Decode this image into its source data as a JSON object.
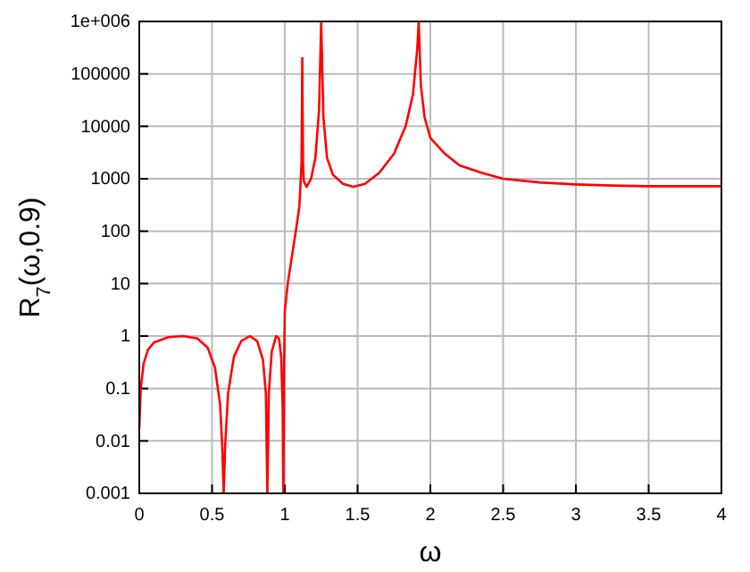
{
  "chart_data": {
    "type": "line",
    "xlabel": "ω",
    "ylabel": "R$_{7}$(ω,0.9)",
    "log": "y",
    "grid": true,
    "marker": "none",
    "line_style": "solid",
    "xlim": [
      0,
      4
    ],
    "xticks": [
      0,
      0.5,
      1,
      1.5,
      2,
      2.5,
      3,
      3.5,
      4
    ],
    "ylim": [
      0.001,
      1000000
    ],
    "yticks": [
      0.001,
      0.01,
      0.1,
      1,
      10,
      100,
      1000,
      10000,
      100000,
      {
        "value": 1000000,
        "label": "1e+006"
      }
    ],
    "series": [
      {
        "color": "#ff0000",
        "x": [
          0,
          0.01,
          0.03,
          0.06,
          0.1,
          0.2,
          0.3,
          0.4,
          0.47,
          0.52,
          0.555,
          0.57,
          0.58,
          0.59,
          0.61,
          0.65,
          0.7,
          0.76,
          0.81,
          0.85,
          0.87,
          0.88,
          0.89,
          0.91,
          0.94,
          0.96,
          0.975,
          0.985,
          0.99,
          0.995,
          1.0,
          1.02,
          1.05,
          1.08,
          1.1,
          1.115,
          1.12,
          1.125,
          1.13,
          1.15,
          1.18,
          1.21,
          1.235,
          1.25,
          1.265,
          1.29,
          1.33,
          1.4,
          1.47,
          1.55,
          1.65,
          1.75,
          1.83,
          1.88,
          1.91,
          1.92,
          1.935,
          1.96,
          2.0,
          2.1,
          2.2,
          2.35,
          2.5,
          2.75,
          3,
          3.25,
          3.5,
          3.75,
          4
        ],
        "values": [
          0.017,
          0.1,
          0.3,
          0.55,
          0.75,
          0.95,
          1,
          0.9,
          0.6,
          0.25,
          0.05,
          0.008,
          0.001,
          0.008,
          0.08,
          0.4,
          0.8,
          1,
          0.8,
          0.35,
          0.08,
          0.001,
          0.08,
          0.5,
          1,
          0.9,
          0.4,
          0.05,
          0.001,
          0.3,
          3,
          10,
          35,
          120,
          300,
          2000,
          200000,
          2000,
          900,
          700,
          1000,
          2500,
          20000,
          1000000,
          15000,
          2500,
          1200,
          800,
          700,
          800,
          1300,
          3000,
          10000,
          40000,
          300000,
          1000000,
          60000,
          15000,
          6000,
          3000,
          1800,
          1300,
          1000,
          850,
          780,
          740,
          720,
          720,
          720
        ]
      }
    ]
  }
}
